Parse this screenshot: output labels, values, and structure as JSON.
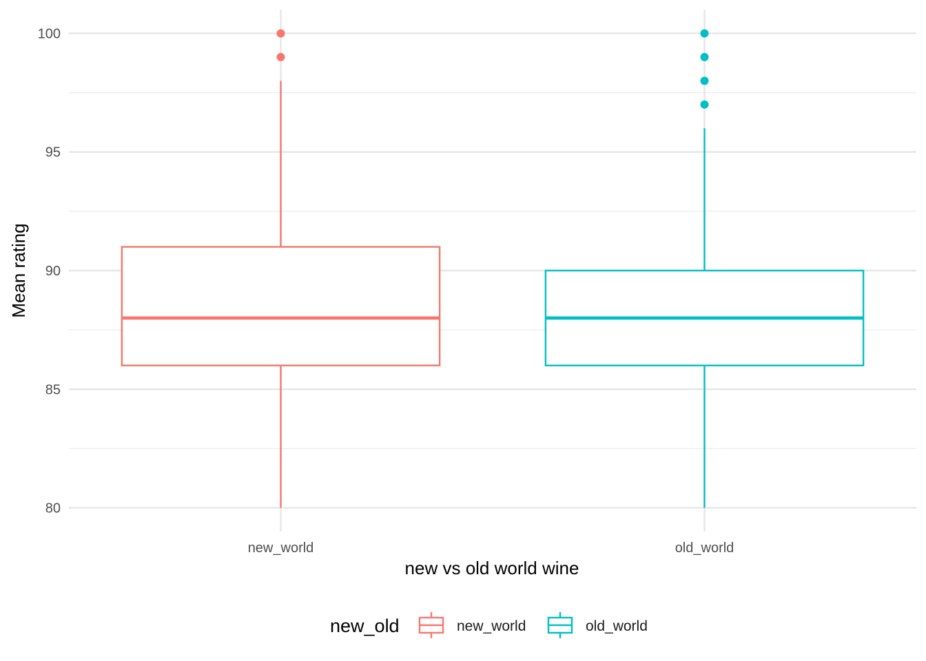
{
  "chart_data": {
    "type": "box",
    "xlabel": "new vs old world wine",
    "ylabel": "Mean rating",
    "categories": [
      "new_world",
      "old_world"
    ],
    "ylim": [
      79,
      101
    ],
    "y_ticks": [
      80,
      85,
      90,
      95,
      100
    ],
    "grid": true,
    "legend": {
      "title": "new_old",
      "position": "bottom",
      "entries": [
        "new_world",
        "old_world"
      ]
    },
    "series": [
      {
        "category": "new_world",
        "color": "#F8766D",
        "whisker_low": 80,
        "q1": 86,
        "median": 88,
        "q3": 91,
        "whisker_high": 98,
        "outliers": [
          99,
          100
        ]
      },
      {
        "category": "old_world",
        "color": "#00BFC4",
        "whisker_low": 80,
        "q1": 86,
        "median": 88,
        "q3": 90,
        "whisker_high": 96,
        "outliers": [
          97,
          98,
          99,
          100
        ]
      }
    ]
  }
}
